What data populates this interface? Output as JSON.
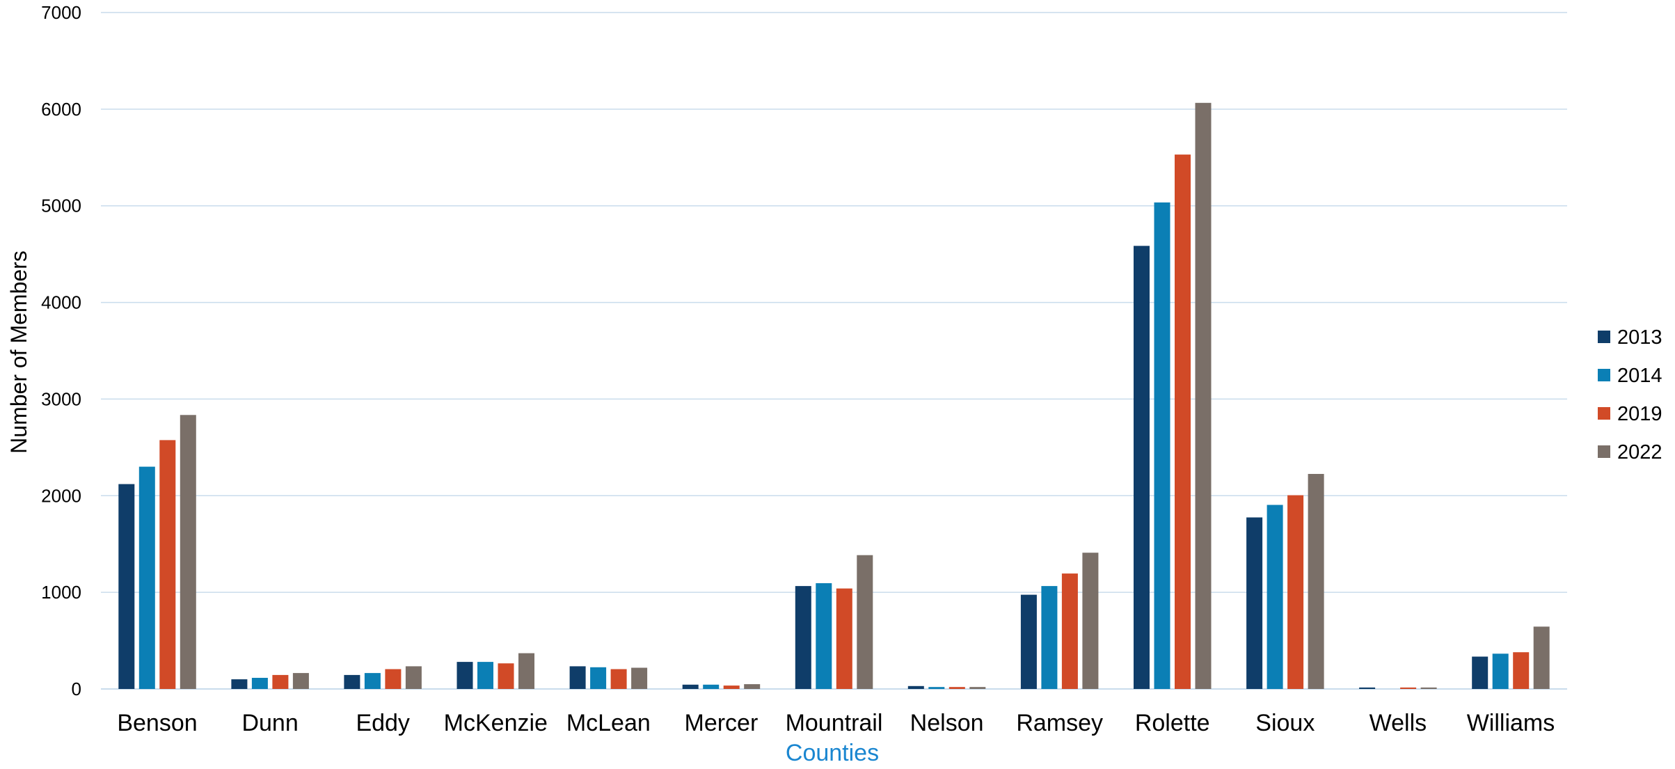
{
  "chart_data": {
    "type": "bar",
    "title": "",
    "xlabel": "Counties",
    "ylabel": "Number of Members",
    "ylim": [
      0,
      7000
    ],
    "yticks": [
      0,
      1000,
      2000,
      3000,
      4000,
      5000,
      6000,
      7000
    ],
    "grid": true,
    "legend_position": "right",
    "categories": [
      "Benson",
      "Dunn",
      "Eddy",
      "McKenzie",
      "McLean",
      "Mercer",
      "Mountrail",
      "Nelson",
      "Ramsey",
      "Rolette",
      "Sioux",
      "Wells",
      "Williams"
    ],
    "series": [
      {
        "name": "2013",
        "color": "#0f3d69",
        "values": [
          2120,
          100,
          145,
          280,
          235,
          45,
          1065,
          30,
          975,
          4585,
          1775,
          15,
          335
        ]
      },
      {
        "name": "2014",
        "color": "#0b7fb5",
        "values": [
          2300,
          115,
          165,
          280,
          225,
          45,
          1095,
          20,
          1065,
          5035,
          1905,
          0,
          365
        ]
      },
      {
        "name": "2019",
        "color": "#d14a27",
        "values": [
          2575,
          145,
          205,
          265,
          205,
          35,
          1040,
          20,
          1195,
          5530,
          2005,
          15,
          380
        ]
      },
      {
        "name": "2022",
        "color": "#7a6f68",
        "values": [
          2835,
          165,
          235,
          370,
          220,
          50,
          1385,
          20,
          1410,
          6065,
          2225,
          15,
          645
        ]
      }
    ],
    "colors": {
      "grid": "#c9dcec",
      "axis_title_x": "#1a86d0"
    }
  }
}
